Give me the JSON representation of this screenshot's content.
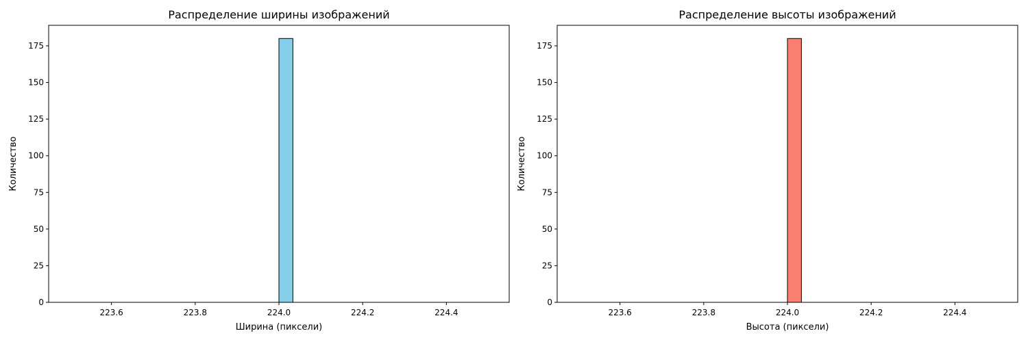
{
  "chart_data": [
    {
      "type": "bar",
      "title": "Распределение ширины изображений",
      "xlabel": "Ширина (пиксели)",
      "ylabel": "Количество",
      "bins": {
        "start": 223.5,
        "end": 224.5,
        "count": 30
      },
      "counts": [
        0,
        0,
        0,
        0,
        0,
        0,
        0,
        0,
        0,
        0,
        0,
        0,
        0,
        0,
        0,
        180,
        0,
        0,
        0,
        0,
        0,
        0,
        0,
        0,
        0,
        0,
        0,
        0,
        0,
        0
      ],
      "xlim": [
        223.45,
        224.55
      ],
      "ylim": [
        0,
        189
      ],
      "xticks": [
        223.6,
        223.8,
        224.0,
        224.2,
        224.4
      ],
      "xtick_labels": [
        "223.6",
        "223.8",
        "224.0",
        "224.2",
        "224.4"
      ],
      "yticks": [
        0,
        25,
        50,
        75,
        100,
        125,
        150,
        175
      ],
      "ytick_labels": [
        "0",
        "25",
        "50",
        "75",
        "100",
        "125",
        "150",
        "175"
      ],
      "bar_color": "#87ceeb",
      "edge_color": "#000000",
      "grid": false
    },
    {
      "type": "bar",
      "title": "Распределение высоты изображений",
      "xlabel": "Высота (пиксели)",
      "ylabel": "Количество",
      "bins": {
        "start": 223.5,
        "end": 224.5,
        "count": 30
      },
      "counts": [
        0,
        0,
        0,
        0,
        0,
        0,
        0,
        0,
        0,
        0,
        0,
        0,
        0,
        0,
        0,
        180,
        0,
        0,
        0,
        0,
        0,
        0,
        0,
        0,
        0,
        0,
        0,
        0,
        0,
        0
      ],
      "xlim": [
        223.45,
        224.55
      ],
      "ylim": [
        0,
        189
      ],
      "xticks": [
        223.6,
        223.8,
        224.0,
        224.2,
        224.4
      ],
      "xtick_labels": [
        "223.6",
        "223.8",
        "224.0",
        "224.2",
        "224.4"
      ],
      "yticks": [
        0,
        25,
        50,
        75,
        100,
        125,
        150,
        175
      ],
      "ytick_labels": [
        "0",
        "25",
        "50",
        "75",
        "100",
        "125",
        "150",
        "175"
      ],
      "bar_color": "#fa8072",
      "edge_color": "#000000",
      "grid": false
    }
  ]
}
